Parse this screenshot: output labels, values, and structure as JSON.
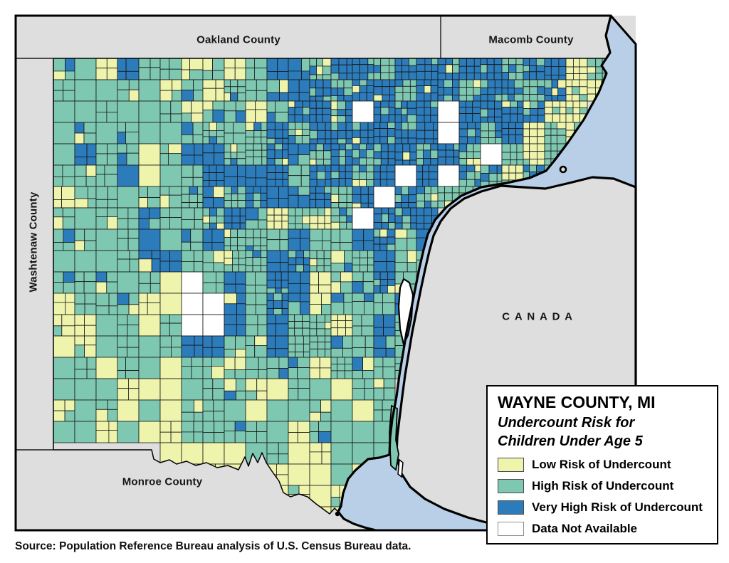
{
  "map": {
    "region_labels": {
      "oakland": "Oakland County",
      "macomb": "Macomb County",
      "washtenaw": "Washtenaw County",
      "monroe": "Monroe County",
      "canada": "CANADA"
    },
    "colors": {
      "low": "#EFF4AC",
      "high": "#7EC8B1",
      "very_high": "#2C7CBB",
      "no_data": "#FFFFFF",
      "water": "#B9CFE8",
      "neighbor_land": "#DEDEDE",
      "border": "#000000"
    },
    "risk_grid": [
      "HHLVHHLHLHVVHVVHVVVVVHVVLH",
      "HHHHHLHLHHVVVHVVHVVHVVHVLL",
      "HHHHHHLHHLHVVVNVVVNVVVHLL.",
      "HHHHHHHHHHVHVVVVVVNVHVLHL.",
      "HVHHHHVVHHVVHVHVVHVHNHLH..",
      "HHHVHHHVVVVHVVHVNVNVHLHH..",
      "LHHHHHHVHVVVVHVNVHHH......",
      "HHHHVHHHVHLHLHNVVV........",
      "HHHHVHHVHHHVHHVVHV........",
      "HHHHVVHHHHVVHHHVHH........",
      "HHHHHLNHVHVVLHHVH.........",
      "LHHHLLNNVHVVLHHHV.........",
      "LLHHLHNNVHVHHLHVH.........",
      "LLHHHHVVHHVHHHHVH.........",
      "HHHHHLHHHHHHLHHHH.........",
      "HHHLLLHHHLLHHLHH..........",
      "LHHLLLHHHLHHHHLH..........",
      "HHLLLLHHHHHLHHHH..........",
      ".....LLLLHHLLHHH..........",
      ".....LLLLHLLLHL...........",
      "..........LLLL............",
      "............LL............"
    ]
  },
  "legend": {
    "title": "WAYNE COUNTY, MI",
    "subtitle_line1": "Undercount Risk for",
    "subtitle_line2": "Children Under Age 5",
    "items": [
      {
        "key": "low",
        "label": "Low Risk of Undercount"
      },
      {
        "key": "high",
        "label": "High Risk of Undercount"
      },
      {
        "key": "very_high",
        "label": "Very High Risk of Undercount"
      },
      {
        "key": "no_data",
        "label": "Data Not Available"
      }
    ]
  },
  "source": "Source: Population Reference Bureau analysis of U.S. Census Bureau data."
}
